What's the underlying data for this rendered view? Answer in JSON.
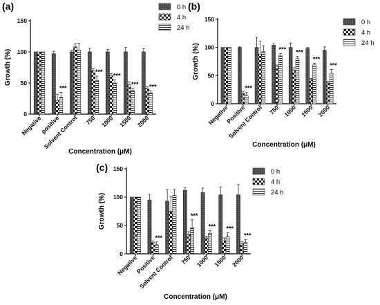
{
  "patterns": {
    "0 h": "dark dots",
    "4 h": "checkerboard",
    "24 h": "horizontal stripes"
  },
  "chart_data": [
    {
      "type": "bar",
      "panel_label": "(a)",
      "xlabel": "Concentration (μM)",
      "ylabel": "Growth (%)",
      "ylim": [
        0,
        150
      ],
      "yticks": [
        0,
        50,
        100,
        150
      ],
      "categories": [
        "Negative",
        "positive",
        "Solvent Control",
        "750",
        "1000",
        "1500",
        "2000"
      ],
      "legend_position": "top-right",
      "series": [
        {
          "name": "0 h",
          "values": [
            100,
            97,
            100,
            100,
            100,
            100,
            100
          ],
          "errors": [
            0,
            4,
            3,
            6,
            4,
            7,
            5
          ]
        },
        {
          "name": "4 h",
          "values": [
            100,
            22,
            108,
            70,
            62,
            47,
            41
          ],
          "errors": [
            0,
            10,
            5,
            3,
            3,
            5,
            3
          ]
        },
        {
          "name": "24 h",
          "values": [
            100,
            27,
            103,
            54,
            50,
            38,
            34
          ],
          "errors": [
            0,
            8,
            11,
            7,
            5,
            3,
            3
          ]
        }
      ],
      "annotations": [
        {
          "category": "positive",
          "text": "***"
        },
        {
          "category": "750",
          "text": "***"
        },
        {
          "category": "1000",
          "text": "***"
        },
        {
          "category": "1500",
          "text": "***"
        },
        {
          "category": "2000",
          "text": "***"
        }
      ]
    },
    {
      "type": "bar",
      "panel_label": "(b)",
      "xlabel": "Concentration (μM)",
      "ylabel": "Growth (%)",
      "ylim": [
        0,
        150
      ],
      "yticks": [
        0,
        50,
        100,
        150
      ],
      "categories": [
        "Negative",
        "Positive",
        "Solvent Control",
        "750",
        "1000",
        "1500",
        "2000"
      ],
      "legend_position": "top-right",
      "series": [
        {
          "name": "0 h",
          "values": [
            100,
            100,
            100,
            104,
            100,
            98,
            95
          ],
          "errors": [
            0,
            1,
            18,
            3,
            8,
            2,
            6
          ]
        },
        {
          "name": "4 h",
          "values": [
            100,
            18,
            88,
            66,
            60,
            43,
            37
          ],
          "errors": [
            0,
            4,
            22,
            3,
            4,
            2,
            3
          ]
        },
        {
          "name": "24 h",
          "values": [
            100,
            14,
            93,
            86,
            80,
            69,
            54
          ],
          "errors": [
            0,
            6,
            10,
            3,
            4,
            3,
            7
          ]
        }
      ],
      "annotations": [
        {
          "category": "Positive",
          "text": "***"
        },
        {
          "category": "750",
          "text": "***"
        },
        {
          "category": "1000",
          "text": "***"
        },
        {
          "category": "1500",
          "text": "***"
        },
        {
          "category": "2000",
          "text": "***"
        }
      ]
    },
    {
      "type": "bar",
      "panel_label": "(c)",
      "xlabel": "Concentration (μM)",
      "ylabel": "Growth (%)",
      "ylim": [
        0,
        150
      ],
      "yticks": [
        0,
        50,
        100,
        150
      ],
      "categories": [
        "Negative",
        "Positive",
        "Solvent Control",
        "750",
        "1000",
        "1500",
        "2000"
      ],
      "legend_position": "top-right",
      "series": [
        {
          "name": "0 h",
          "values": [
            100,
            95,
            93,
            112,
            108,
            104,
            104
          ],
          "errors": [
            0,
            10,
            20,
            5,
            8,
            14,
            18
          ]
        },
        {
          "name": "4 h",
          "values": [
            100,
            20,
            75,
            35,
            28,
            23,
            18
          ],
          "errors": [
            0,
            3,
            26,
            4,
            3,
            5,
            4
          ]
        },
        {
          "name": "24 h",
          "values": [
            100,
            16,
            103,
            46,
            36,
            30,
            20
          ],
          "errors": [
            0,
            5,
            10,
            14,
            5,
            7,
            5
          ]
        }
      ],
      "annotations": [
        {
          "category": "Positive",
          "text": "***"
        },
        {
          "category": "750",
          "text": "***"
        },
        {
          "category": "1000",
          "text": "***"
        },
        {
          "category": "1500",
          "text": "***"
        },
        {
          "category": "2000",
          "text": "***"
        }
      ]
    }
  ]
}
